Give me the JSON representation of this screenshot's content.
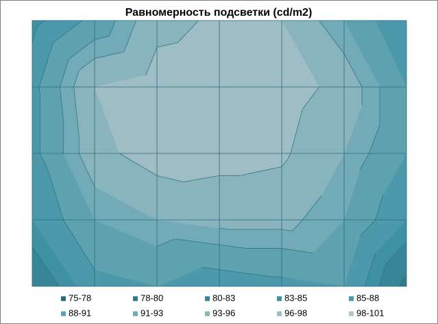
{
  "chart_data": {
    "type": "contour",
    "title": "Равномерность подсветки (cd/m2)",
    "z": [
      [
        84,
        89,
        95,
        96.5,
        96,
        91,
        85
      ],
      [
        87,
        96,
        97.5,
        98,
        97.5,
        95,
        88
      ],
      [
        87,
        95,
        97.5,
        97,
        96.5,
        93,
        88
      ],
      [
        85,
        91,
        93,
        94,
        94,
        91,
        85
      ],
      [
        80,
        87,
        88,
        86,
        87,
        88,
        79
      ]
    ],
    "series": [
      {
        "name": "75-78",
        "color": "#2c6b79",
        "range": [
          75,
          78
        ]
      },
      {
        "name": "78-80",
        "color": "#32798a",
        "range": [
          78,
          80
        ]
      },
      {
        "name": "80-83",
        "color": "#378697",
        "range": [
          80,
          83
        ]
      },
      {
        "name": "83-85",
        "color": "#3d91a3",
        "range": [
          83,
          85
        ]
      },
      {
        "name": "85-88",
        "color": "#4b99aa",
        "range": [
          85,
          88
        ]
      },
      {
        "name": "88-91",
        "color": "#5ea2b0",
        "range": [
          88,
          91
        ]
      },
      {
        "name": "91-93",
        "color": "#72abb7",
        "range": [
          91,
          93
        ]
      },
      {
        "name": "93-96",
        "color": "#89b4be",
        "range": [
          93,
          96
        ]
      },
      {
        "name": "96-98",
        "color": "#9fbdc5",
        "range": [
          96,
          98
        ]
      },
      {
        "name": "98-101",
        "color": "#b0c5cc",
        "range": [
          98,
          101
        ]
      }
    ],
    "grid": true
  }
}
